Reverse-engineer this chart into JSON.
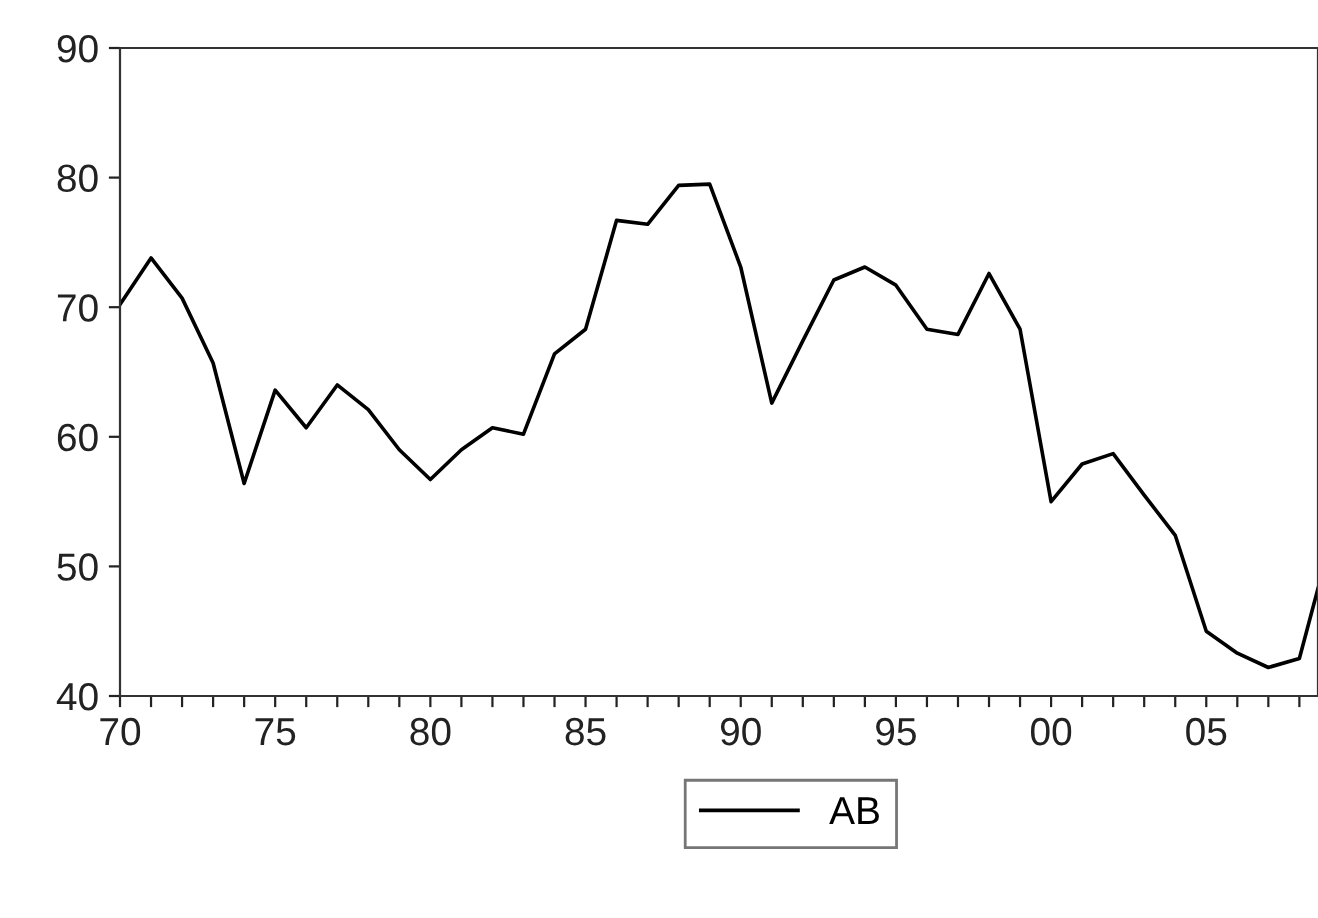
{
  "chart_data": {
    "type": "line",
    "x": [
      1970,
      1971,
      1972,
      1973,
      1974,
      1975,
      1976,
      1977,
      1978,
      1979,
      1980,
      1981,
      1982,
      1983,
      1984,
      1985,
      1986,
      1987,
      1988,
      1989,
      1990,
      1991,
      1992,
      1993,
      1994,
      1995,
      1996,
      1997,
      1998,
      1999,
      2000,
      2001,
      2002,
      2003,
      2004,
      2005,
      2006,
      2007,
      2008,
      2008.6
    ],
    "series": [
      {
        "name": "AB",
        "color": "#000000",
        "values": [
          70.2,
          73.8,
          70.7,
          65.7,
          56.4,
          63.6,
          60.7,
          64.0,
          62.1,
          59.0,
          56.7,
          59.0,
          60.7,
          60.2,
          66.4,
          68.3,
          76.7,
          76.4,
          79.4,
          79.5,
          73.1,
          62.6,
          67.4,
          72.1,
          73.1,
          71.7,
          68.3,
          67.9,
          72.6,
          68.3,
          55.0,
          57.9,
          58.7,
          55.5,
          52.4,
          45.0,
          43.3,
          42.2,
          42.9,
          48.3
        ]
      }
    ],
    "xlim": [
      1970,
      2008.6
    ],
    "xticks": [
      {
        "value": 1970,
        "label": "70"
      },
      {
        "value": 1971,
        "label": null
      },
      {
        "value": 1972,
        "label": null
      },
      {
        "value": 1973,
        "label": null
      },
      {
        "value": 1974,
        "label": null
      },
      {
        "value": 1975,
        "label": "75"
      },
      {
        "value": 1976,
        "label": null
      },
      {
        "value": 1977,
        "label": null
      },
      {
        "value": 1978,
        "label": null
      },
      {
        "value": 1979,
        "label": null
      },
      {
        "value": 1980,
        "label": "80"
      },
      {
        "value": 1981,
        "label": null
      },
      {
        "value": 1982,
        "label": null
      },
      {
        "value": 1983,
        "label": null
      },
      {
        "value": 1984,
        "label": null
      },
      {
        "value": 1985,
        "label": "85"
      },
      {
        "value": 1986,
        "label": null
      },
      {
        "value": 1987,
        "label": null
      },
      {
        "value": 1988,
        "label": null
      },
      {
        "value": 1989,
        "label": null
      },
      {
        "value": 1990,
        "label": "90"
      },
      {
        "value": 1991,
        "label": null
      },
      {
        "value": 1992,
        "label": null
      },
      {
        "value": 1993,
        "label": null
      },
      {
        "value": 1994,
        "label": null
      },
      {
        "value": 1995,
        "label": "95"
      },
      {
        "value": 1996,
        "label": null
      },
      {
        "value": 1997,
        "label": null
      },
      {
        "value": 1998,
        "label": null
      },
      {
        "value": 1999,
        "label": null
      },
      {
        "value": 2000,
        "label": "00"
      },
      {
        "value": 2001,
        "label": null
      },
      {
        "value": 2002,
        "label": null
      },
      {
        "value": 2003,
        "label": null
      },
      {
        "value": 2004,
        "label": null
      },
      {
        "value": 2005,
        "label": "05"
      },
      {
        "value": 2006,
        "label": null
      },
      {
        "value": 2007,
        "label": null
      },
      {
        "value": 2008,
        "label": null
      }
    ],
    "ylim": [
      40,
      90
    ],
    "yticks": [
      40,
      50,
      60,
      70,
      80,
      90
    ],
    "grid": false,
    "legend": "bottom",
    "line_style": "solid",
    "marker": "none"
  }
}
